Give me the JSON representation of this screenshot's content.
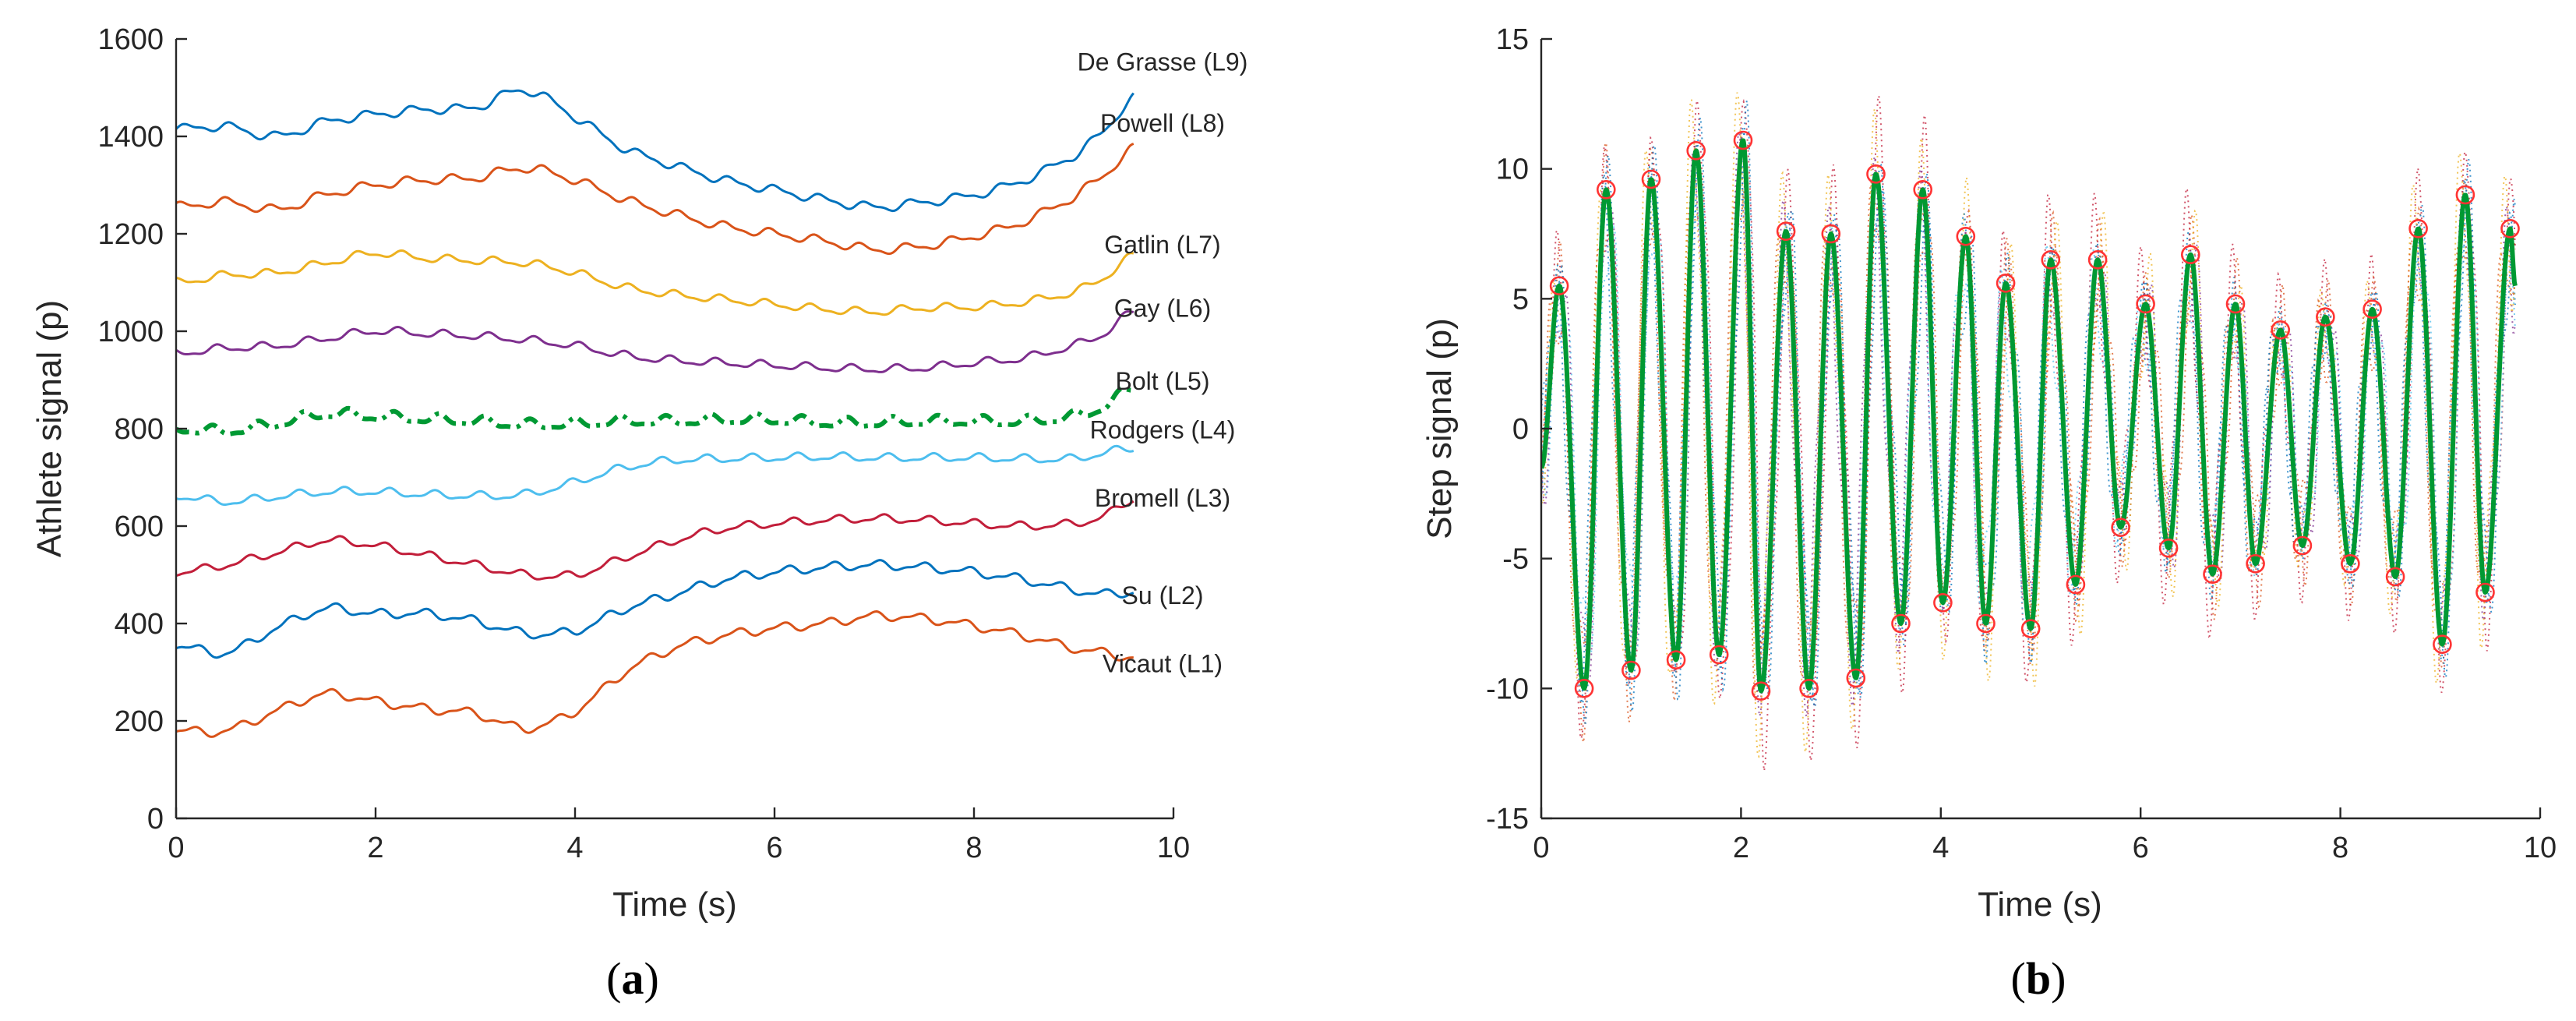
{
  "figure": {
    "panel_a_label": "a",
    "panel_b_label": "b",
    "panel_open": "(",
    "panel_close": ")"
  },
  "chart_data": [
    {
      "type": "line",
      "id": "a",
      "xlabel": "Time (s)",
      "ylabel": "Athlete signal (p)",
      "xlim": [
        0,
        10
      ],
      "ylim": [
        0,
        1600
      ],
      "xticks": [
        0,
        2,
        4,
        6,
        8,
        10
      ],
      "yticks": [
        0,
        200,
        400,
        600,
        800,
        1000,
        1200,
        1400,
        1600
      ],
      "x_end": 9.6,
      "series": [
        {
          "name": "De Grasse (L9)",
          "color": "#0072BD",
          "style": "solid",
          "x": [
            0,
            0.5,
            1,
            1.5,
            2,
            2.5,
            3,
            3.5,
            4,
            4.5,
            5,
            5.5,
            6,
            6.5,
            7,
            7.5,
            8,
            8.5,
            9,
            9.3,
            9.6
          ],
          "y": [
            1415,
            1420,
            1400,
            1430,
            1445,
            1455,
            1460,
            1495,
            1440,
            1375,
            1340,
            1310,
            1290,
            1270,
            1255,
            1265,
            1280,
            1310,
            1360,
            1410,
            1480
          ],
          "wiggle": 8,
          "label_y": 1535
        },
        {
          "name": "Powell (L8)",
          "color": "#D95319",
          "style": "solid",
          "x": [
            0,
            0.5,
            1,
            1.5,
            2,
            2.5,
            3,
            3.5,
            4,
            4.5,
            5,
            5.5,
            6,
            6.5,
            7,
            7.5,
            8,
            8.5,
            9,
            9.3,
            9.6
          ],
          "y": [
            1255,
            1265,
            1250,
            1280,
            1300,
            1310,
            1315,
            1335,
            1310,
            1270,
            1240,
            1215,
            1200,
            1185,
            1168,
            1175,
            1195,
            1225,
            1275,
            1320,
            1375
          ],
          "wiggle": 8,
          "label_y": 1410
        },
        {
          "name": "Gatlin (L7)",
          "color": "#EDB120",
          "style": "solid",
          "x": [
            0,
            0.5,
            1,
            1.5,
            2,
            2.5,
            3,
            3.5,
            4,
            4.5,
            5,
            5.5,
            6,
            6.5,
            7,
            7.5,
            8,
            8.5,
            9,
            9.3,
            9.6
          ],
          "y": [
            1100,
            1115,
            1120,
            1140,
            1160,
            1150,
            1145,
            1140,
            1120,
            1090,
            1075,
            1065,
            1055,
            1045,
            1040,
            1048,
            1050,
            1060,
            1080,
            1110,
            1155
          ],
          "wiggle": 7,
          "label_y": 1160
        },
        {
          "name": "Gay (L6)",
          "color": "#7E2F8E",
          "style": "solid",
          "x": [
            0,
            0.5,
            1,
            1.5,
            2,
            2.5,
            3,
            3.5,
            4,
            4.5,
            5,
            5.5,
            6,
            6.5,
            7,
            7.5,
            8,
            8.5,
            9,
            9.3,
            9.6
          ],
          "y": [
            955,
            965,
            970,
            985,
            1000,
            995,
            990,
            982,
            970,
            950,
            940,
            935,
            930,
            925,
            922,
            925,
            935,
            945,
            970,
            995,
            1040
          ],
          "wiggle": 7,
          "label_y": 1030
        },
        {
          "name": "Bolt (L5)",
          "color": "#009933",
          "style": "dashdot",
          "x": [
            0,
            0.5,
            1,
            1.5,
            2,
            2.5,
            3,
            3.5,
            4,
            4.5,
            5,
            5.5,
            6,
            6.5,
            7,
            7.5,
            8,
            8.5,
            9,
            9.3,
            9.6
          ],
          "y": [
            800,
            795,
            810,
            830,
            825,
            820,
            815,
            808,
            810,
            815,
            815,
            818,
            818,
            812,
            812,
            815,
            815,
            815,
            825,
            845,
            885
          ],
          "wiggle": 9,
          "label_y": 880
        },
        {
          "name": "Rodgers (L4)",
          "color": "#4DBEEE",
          "style": "solid",
          "x": [
            0,
            0.5,
            1,
            1.5,
            2,
            2.5,
            3,
            3.5,
            4,
            4.5,
            5,
            5.5,
            6,
            6.5,
            7,
            7.5,
            8,
            8.5,
            9,
            9.3,
            9.6
          ],
          "y": [
            662,
            650,
            660,
            670,
            670,
            665,
            662,
            665,
            690,
            720,
            735,
            738,
            740,
            742,
            740,
            740,
            740,
            738,
            738,
            750,
            760
          ],
          "wiggle": 7,
          "label_y": 780
        },
        {
          "name": "Bromell (L3)",
          "color": "#C21E3A",
          "style": "solid",
          "x": [
            0,
            0.5,
            1,
            1.5,
            2,
            2.5,
            3,
            3.5,
            4,
            4.5,
            5,
            5.5,
            6,
            6.5,
            7,
            7.5,
            8,
            8.5,
            9,
            9.3,
            9.6
          ],
          "y": [
            505,
            520,
            545,
            570,
            560,
            540,
            520,
            500,
            500,
            535,
            570,
            595,
            605,
            612,
            615,
            612,
            605,
            600,
            605,
            620,
            655
          ],
          "wiggle": 7,
          "label_y": 640
        },
        {
          "name": "Su (L2)",
          "color": "#0072BD",
          "style": "solid",
          "x": [
            0,
            0.5,
            1,
            1.5,
            2,
            2.5,
            3,
            3.5,
            4,
            4.5,
            5,
            5.5,
            6,
            6.5,
            7,
            7.5,
            8,
            8.5,
            9,
            9.3,
            9.6
          ],
          "y": [
            355,
            340,
            390,
            430,
            420,
            420,
            405,
            380,
            385,
            430,
            460,
            490,
            505,
            515,
            520,
            515,
            505,
            490,
            470,
            460,
            465
          ],
          "wiggle": 8,
          "label_y": 440
        },
        {
          "name": "Vicaut (L1)",
          "color": "#D95319",
          "style": "solid",
          "x": [
            0,
            0.5,
            1,
            1.5,
            2,
            2.5,
            3,
            3.5,
            4,
            4.5,
            5,
            5.5,
            6,
            6.5,
            7,
            7.5,
            8,
            8.5,
            9,
            9.3,
            9.6
          ],
          "y": [
            180,
            180,
            220,
            255,
            240,
            225,
            215,
            185,
            220,
            300,
            350,
            375,
            390,
            400,
            415,
            410,
            395,
            375,
            350,
            340,
            330
          ],
          "wiggle": 8,
          "label_y": 300
        }
      ]
    },
    {
      "type": "line",
      "id": "b",
      "xlabel": "Time (s)",
      "ylabel": "Step signal (p)",
      "xlim": [
        0,
        10
      ],
      "ylim": [
        -15,
        15
      ],
      "xticks": [
        0,
        2,
        4,
        6,
        8,
        10
      ],
      "yticks": [
        -15,
        -10,
        -5,
        0,
        5,
        10,
        15
      ],
      "main_series": {
        "name": "Bolt (L5)",
        "color": "#009933",
        "start": {
          "x": 0,
          "y": -1.5
        },
        "end": {
          "x": 9.75,
          "y": 5.5
        }
      },
      "extrema": {
        "x": [
          0.18,
          0.43,
          0.65,
          0.9,
          1.1,
          1.35,
          1.55,
          1.78,
          2.02,
          2.2,
          2.45,
          2.68,
          2.9,
          3.15,
          3.35,
          3.6,
          3.82,
          4.02,
          4.25,
          4.45,
          4.65,
          4.9,
          5.1,
          5.35,
          5.57,
          5.8,
          6.05,
          6.28,
          6.5,
          6.72,
          6.95,
          7.15,
          7.4,
          7.62,
          7.85,
          8.1,
          8.32,
          8.55,
          8.78,
          9.02,
          9.25,
          9.45,
          9.7
        ],
        "y": [
          5.5,
          -10,
          9.2,
          -9.3,
          9.6,
          -8.9,
          10.7,
          -8.7,
          11.1,
          -10.1,
          7.6,
          -10,
          7.5,
          -9.6,
          9.8,
          -7.5,
          9.2,
          -6.7,
          7.4,
          -7.5,
          5.6,
          -7.7,
          6.5,
          -6,
          6.5,
          -3.8,
          4.8,
          -4.6,
          6.7,
          -5.6,
          4.8,
          -5.2,
          3.8,
          -4.5,
          4.3,
          -5.2,
          4.6,
          -5.7,
          7.7,
          -8.3,
          9,
          -6.3,
          7.7
        ]
      },
      "marker_color": "#FF3333",
      "background_series": [
        {
          "name": "Vicaut (L1)",
          "color": "#D95319",
          "phase": 0.0,
          "amp": 1.05
        },
        {
          "name": "Su (L2)",
          "color": "#0072BD",
          "phase": 0.9,
          "amp": 0.9
        },
        {
          "name": "Bromell (L3)",
          "color": "#C21E3A",
          "phase": 1.7,
          "amp": 1.15
        },
        {
          "name": "Rodgers (L4)",
          "color": "#4DBEEE",
          "phase": 2.4,
          "amp": 0.85
        },
        {
          "name": "Gay (L6)",
          "color": "#7E2F8E",
          "phase": 3.1,
          "amp": 0.95
        },
        {
          "name": "Gatlin (L7)",
          "color": "#EDB120",
          "phase": 3.8,
          "amp": 1.1
        },
        {
          "name": "Powell (L8)",
          "color": "#D95319",
          "phase": 4.6,
          "amp": 0.9
        },
        {
          "name": "De Grasse (L9)",
          "color": "#0072BD",
          "phase": 5.3,
          "amp": 1.0
        }
      ]
    }
  ]
}
